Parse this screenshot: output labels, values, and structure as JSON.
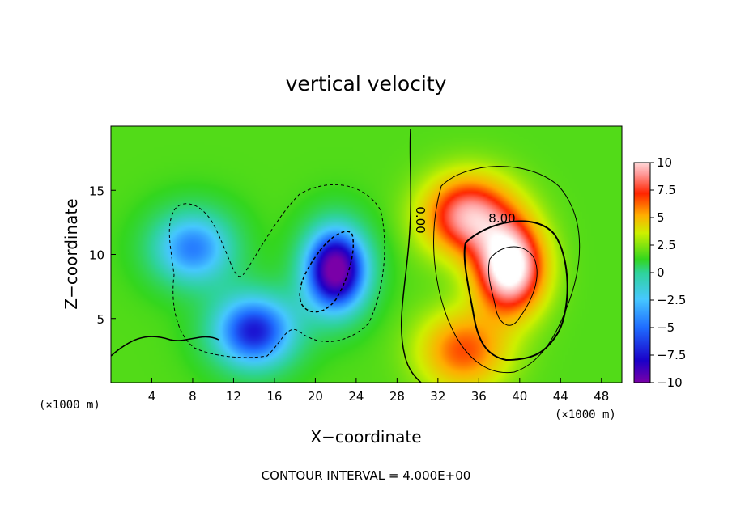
{
  "chart_data": {
    "type": "heatmap",
    "title": "vertical velocity",
    "xlabel": "X−coordinate",
    "ylabel": "Z−coordinate",
    "x_unit_note": "(×1000 m)",
    "x_unit_note_right": "(×1000 m)",
    "xlim": [
      0,
      50
    ],
    "ylim": [
      0,
      20
    ],
    "xticks": [
      4,
      8,
      12,
      16,
      20,
      24,
      28,
      32,
      36,
      40,
      44,
      48
    ],
    "yticks": [
      5,
      10,
      15
    ],
    "colorbar": {
      "range": [
        -10,
        10
      ],
      "labels": [
        "10",
        "7.5",
        "5",
        "2.5",
        "0",
        "−2.5",
        "−5",
        "−7.5",
        "−10"
      ],
      "label_values": [
        10,
        7.5,
        5,
        2.5,
        0,
        -2.5,
        -5,
        -7.5,
        -10
      ],
      "colors": [
        "#7a00a8",
        "#1a00c8",
        "#1f6cff",
        "#46c8ff",
        "#2ed39a",
        "#33d61e",
        "#cdf000",
        "#ffae00",
        "#ff2400",
        "#ff9c9c",
        "#ffffff"
      ]
    },
    "contour_labels": [
      {
        "text": "0.00",
        "x": 29.5,
        "y": 12
      },
      {
        "text": "8.00",
        "x": 38.5,
        "y": 12.7
      }
    ],
    "contour_interval_note": "CONTOUR INTERVAL = 4.000E+00",
    "features": [
      {
        "x": 22.0,
        "z": 8.8,
        "w": -11
      },
      {
        "x": 14.0,
        "z": 4.0,
        "w": -8
      },
      {
        "x": 8.0,
        "z": 10.5,
        "w": -6
      },
      {
        "x": 39.0,
        "z": 9.0,
        "w": 11
      },
      {
        "x": 35.0,
        "z": 13.0,
        "w": 8
      },
      {
        "x": 34.5,
        "z": 2.5,
        "w": 5
      }
    ]
  }
}
